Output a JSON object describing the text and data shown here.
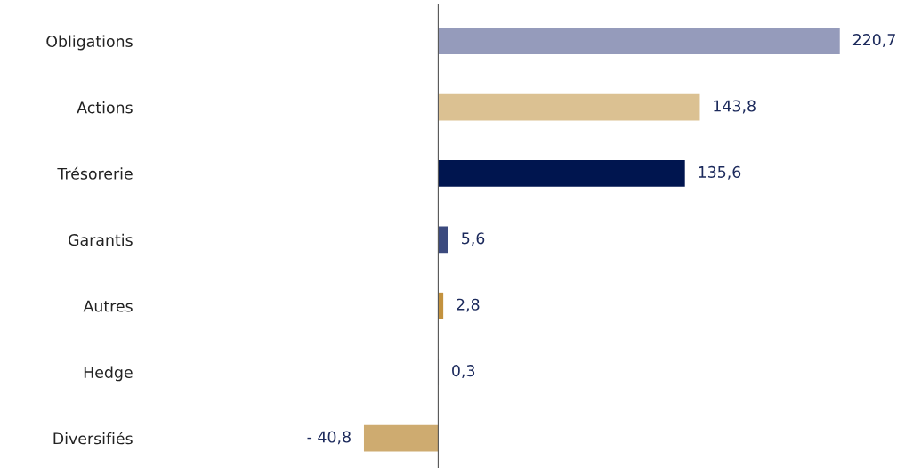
{
  "chart_data": {
    "type": "bar",
    "orientation": "horizontal",
    "categories": [
      "Obligations",
      "Actions",
      "Trésorerie",
      "Garantis",
      "Autres",
      "Hedge",
      "Diversifiés"
    ],
    "values": [
      220.7,
      143.8,
      135.6,
      5.6,
      2.8,
      0.3,
      -40.8
    ],
    "colors": [
      "#959bbb",
      "#dbc192",
      "#00154f",
      "#3b4a7e",
      "#c3923e",
      "#5a5f90",
      "#ceab70"
    ],
    "value_labels": [
      "220,7",
      "143,8",
      "135,6",
      "5,6",
      "2,8",
      "0,3",
      "- 40,8"
    ],
    "grid": false,
    "legend": false
  }
}
